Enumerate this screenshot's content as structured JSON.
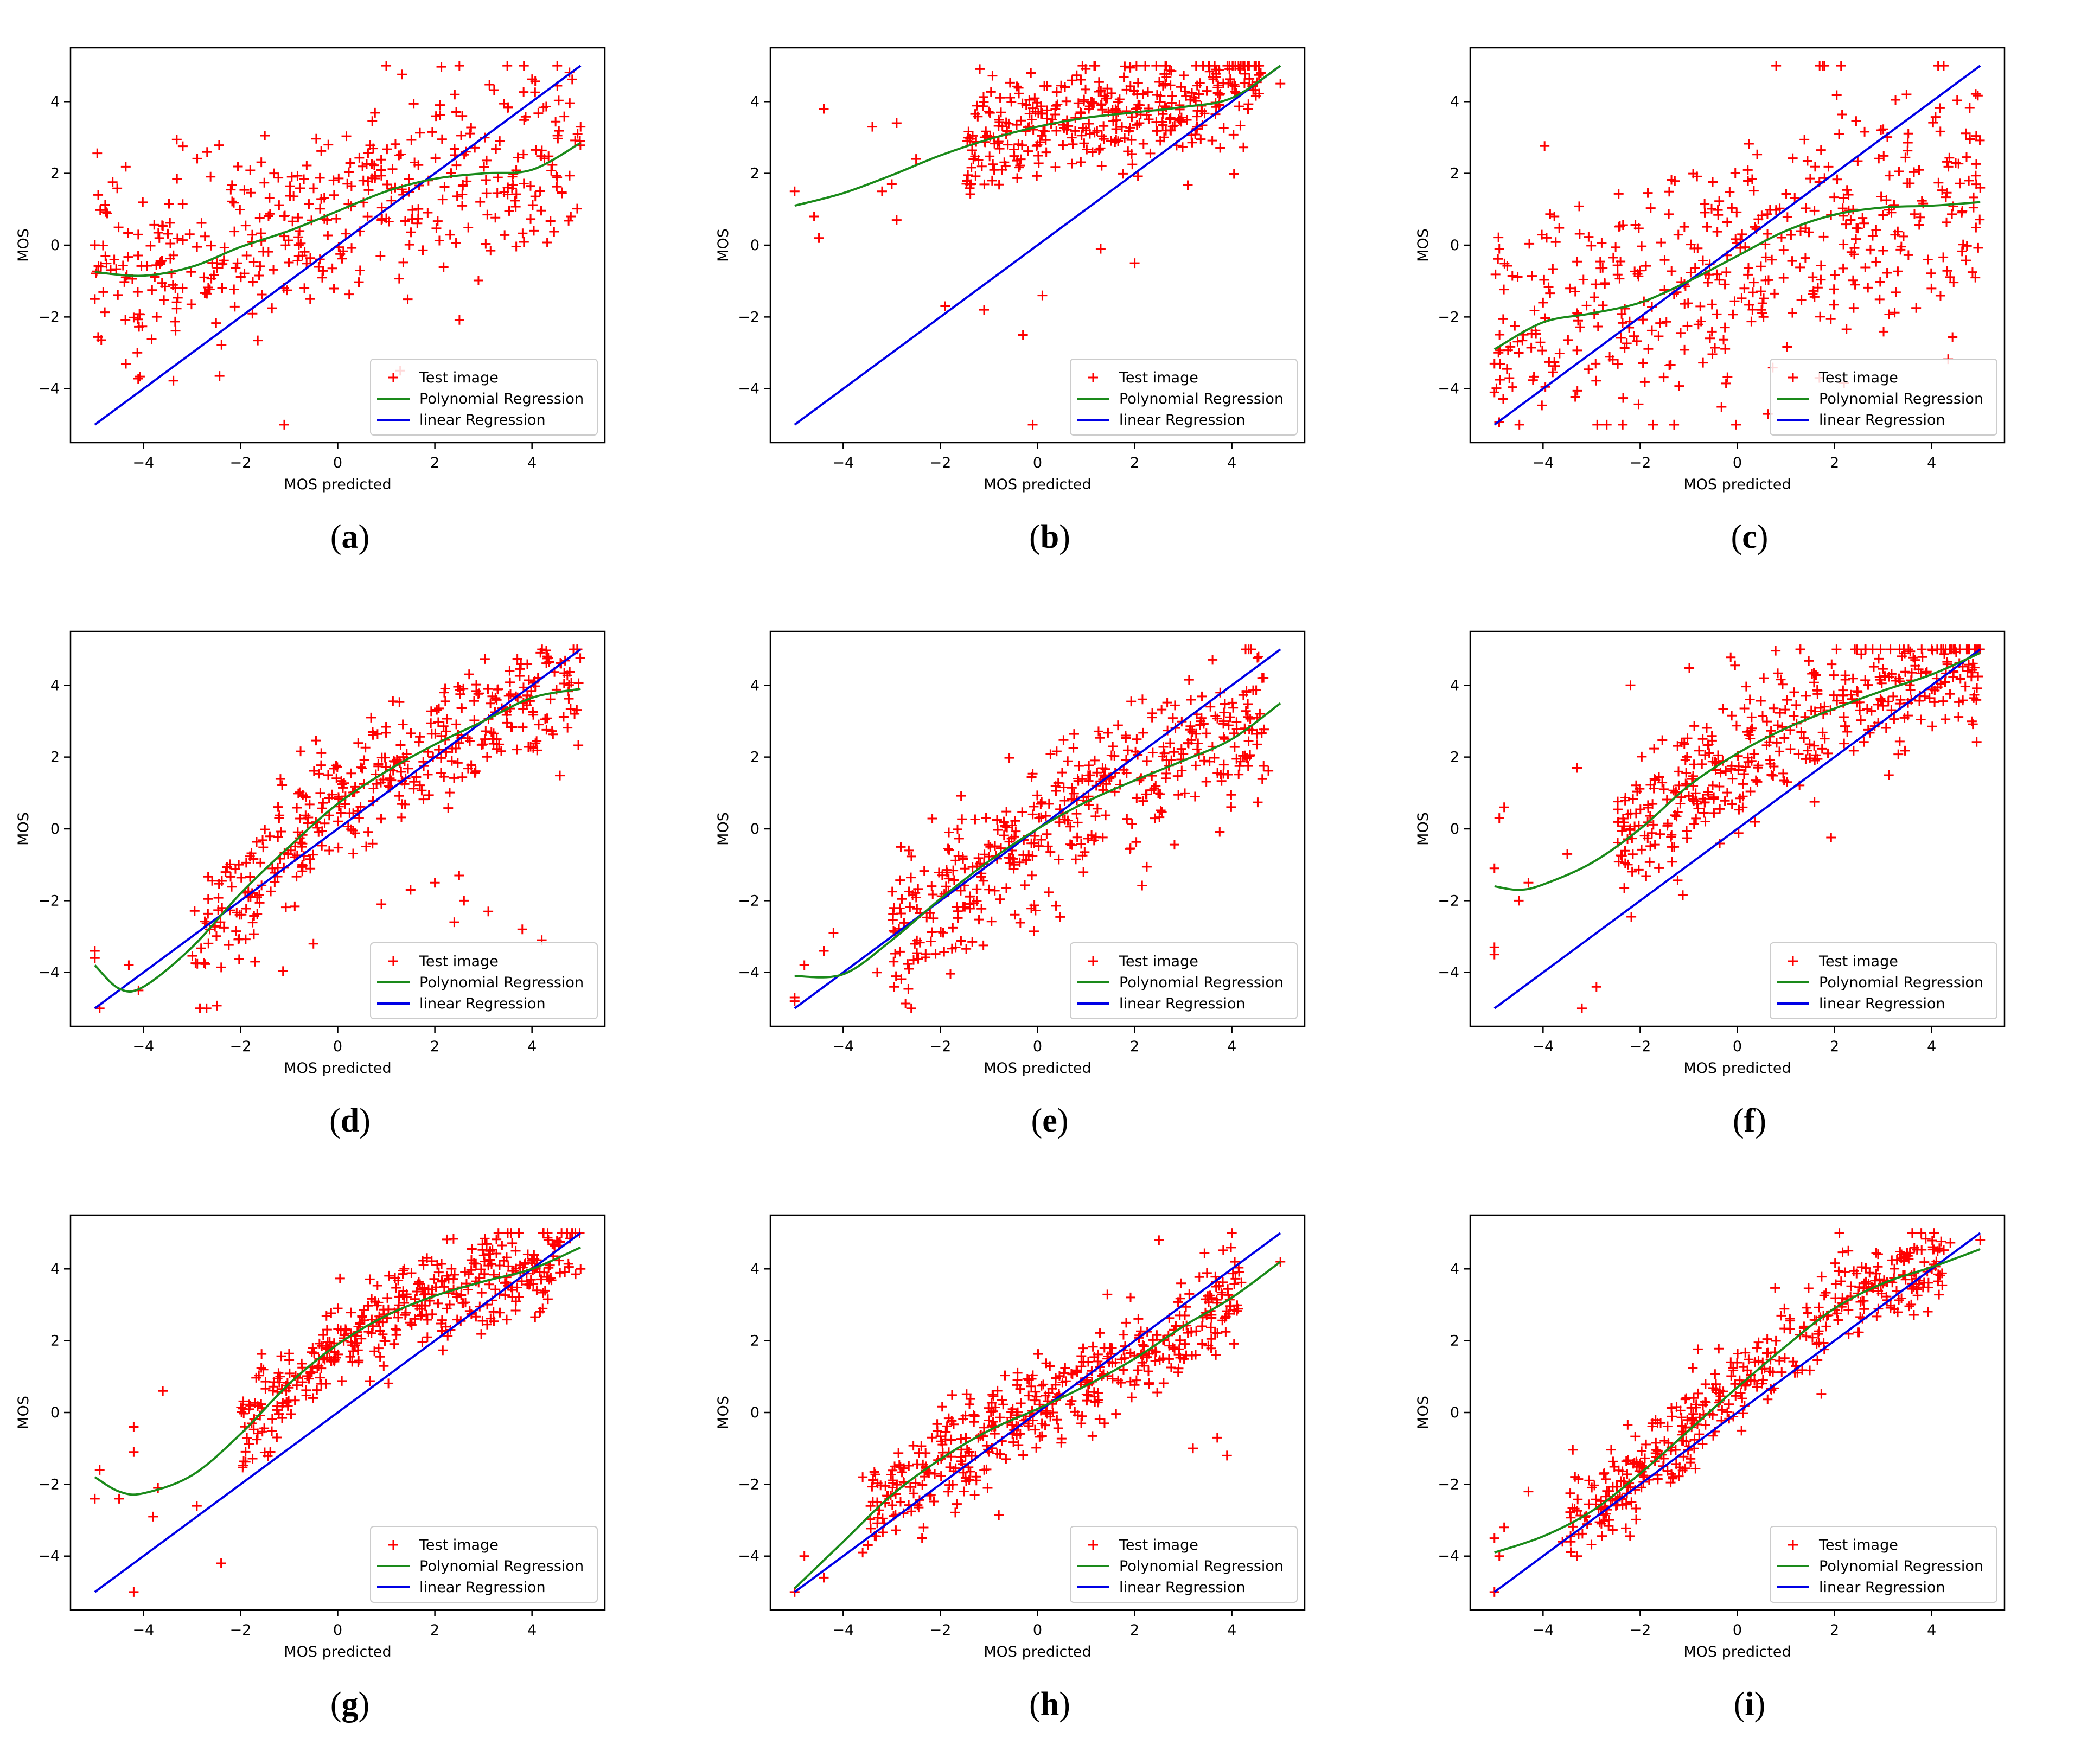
{
  "figure": {
    "legend_labels": [
      "Test image",
      "Polynomial Regression",
      "linear Regression"
    ],
    "colors": {
      "points": "#ff0000",
      "poly": "#1a8a1a",
      "linear": "#0000e6",
      "axes": "#000000"
    }
  },
  "chart_data": [
    {
      "id": "a",
      "caption": "a",
      "type": "scatter",
      "xlabel": "MOS predicted",
      "ylabel": "MOS",
      "xlim": [
        -5.5,
        5.5
      ],
      "ylim": [
        -5.5,
        5.5
      ],
      "xticks": [
        -4,
        -2,
        0,
        2,
        4
      ],
      "yticks": [
        -4,
        -2,
        0,
        2,
        4
      ],
      "linear": {
        "x": [
          -5,
          5
        ],
        "y": [
          -5,
          5
        ]
      },
      "poly": {
        "x": [
          -5,
          -4,
          -3,
          -2,
          -1,
          0,
          1,
          2,
          3,
          4,
          5
        ],
        "y": [
          -0.75,
          -0.85,
          -0.6,
          -0.05,
          0.4,
          0.95,
          1.5,
          1.85,
          2.0,
          2.1,
          2.85
        ]
      },
      "scatter": {
        "n": 420,
        "seed": 11,
        "noise": 1.35,
        "xmin": -5,
        "xmax": 5,
        "extra": [
          [
            1,
            5
          ],
          [
            -1.1,
            -5
          ],
          [
            -5,
            0
          ],
          [
            -5,
            -1.5
          ],
          [
            -4.6,
            -0.4
          ],
          [
            4.8,
            0.8
          ],
          [
            5,
            3.3
          ]
        ]
      }
    },
    {
      "id": "b",
      "caption": "b",
      "type": "scatter",
      "xlabel": "MOS predicted",
      "ylabel": "MOS",
      "xlim": [
        -5.5,
        5.5
      ],
      "ylim": [
        -5.5,
        5.5
      ],
      "xticks": [
        -4,
        -2,
        0,
        2,
        4
      ],
      "yticks": [
        -4,
        -2,
        0,
        2,
        4
      ],
      "linear": {
        "x": [
          -5,
          5
        ],
        "y": [
          -5,
          5
        ]
      },
      "poly": {
        "x": [
          -5,
          -4,
          -3,
          -2,
          -1,
          0,
          1,
          2,
          3,
          4,
          5
        ],
        "y": [
          1.1,
          1.45,
          1.95,
          2.5,
          2.95,
          3.3,
          3.55,
          3.7,
          3.85,
          4.1,
          5.0
        ]
      },
      "scatter": {
        "n": 380,
        "seed": 23,
        "noise": 0.75,
        "xmin": -1.5,
        "xmax": 4.6,
        "extra": [
          [
            -5,
            1.5
          ],
          [
            -4.6,
            0.8
          ],
          [
            -4.5,
            0.2
          ],
          [
            -3.2,
            1.5
          ],
          [
            -2.9,
            0.7
          ],
          [
            -1.9,
            -1.7
          ],
          [
            -1.1,
            -1.8
          ],
          [
            -0.3,
            -2.5
          ],
          [
            -0.1,
            -5
          ],
          [
            0.1,
            -1.4
          ],
          [
            1.3,
            -0.1
          ],
          [
            2.0,
            -0.5
          ],
          [
            -2.9,
            3.4
          ],
          [
            -3.4,
            3.3
          ],
          [
            -4.4,
            3.8
          ],
          [
            -2.5,
            2.4
          ],
          [
            -3.0,
            1.7
          ],
          [
            5,
            4.5
          ]
        ]
      }
    },
    {
      "id": "c",
      "caption": "c",
      "type": "scatter",
      "xlabel": "MOS predicted",
      "ylabel": "MOS",
      "xlim": [
        -5.5,
        5.5
      ],
      "ylim": [
        -5.5,
        5.5
      ],
      "xticks": [
        -4,
        -2,
        0,
        2,
        4
      ],
      "yticks": [
        -4,
        -2,
        0,
        2,
        4
      ],
      "linear": {
        "x": [
          -5,
          5
        ],
        "y": [
          -5,
          5
        ]
      },
      "poly": {
        "x": [
          -5,
          -4,
          -3,
          -2,
          -1,
          0,
          1,
          2,
          3,
          4,
          5
        ],
        "y": [
          -2.9,
          -2.15,
          -1.9,
          -1.6,
          -1.0,
          -0.3,
          0.4,
          0.85,
          1.05,
          1.1,
          1.2
        ]
      },
      "scatter": {
        "n": 440,
        "seed": 37,
        "noise": 1.75,
        "xmin": -5,
        "xmax": 5,
        "extra": [
          [
            0.8,
            5
          ],
          [
            -5,
            -4.1
          ],
          [
            -5,
            -3.3
          ],
          [
            -4.9,
            -0.1
          ],
          [
            -4.5,
            -3.0
          ],
          [
            -4.0,
            -1.6
          ],
          [
            -1.3,
            -5
          ],
          [
            5,
            1.6
          ],
          [
            4.9,
            -0.9
          ]
        ]
      }
    },
    {
      "id": "d",
      "caption": "d",
      "type": "scatter",
      "xlabel": "MOS predicted",
      "ylabel": "MOS",
      "xlim": [
        -5.5,
        5.5
      ],
      "ylim": [
        -5.5,
        5.5
      ],
      "xticks": [
        -4,
        -2,
        0,
        2,
        4
      ],
      "yticks": [
        -4,
        -2,
        0,
        2,
        4
      ],
      "linear": {
        "x": [
          -5,
          5
        ],
        "y": [
          -5,
          5
        ]
      },
      "poly": {
        "x": [
          -5,
          -4.5,
          -4,
          -3,
          -2,
          -1,
          0,
          1,
          2,
          3,
          4,
          5
        ],
        "y": [
          -3.8,
          -4.45,
          -4.4,
          -3.3,
          -1.8,
          -0.5,
          0.7,
          1.6,
          2.35,
          3.0,
          3.65,
          3.9
        ]
      },
      "scatter": {
        "n": 400,
        "seed": 41,
        "noise": 0.9,
        "xmin": -3,
        "xmax": 5,
        "extra": [
          [
            -5,
            -3.4
          ],
          [
            -5,
            -3.6
          ],
          [
            -4.9,
            -5
          ],
          [
            -4.3,
            -3.8
          ],
          [
            -4.1,
            -4.5
          ],
          [
            -2.7,
            -5
          ],
          [
            2.0,
            -1.5
          ],
          [
            2.5,
            -1.3
          ],
          [
            2.6,
            -2.0
          ],
          [
            3.1,
            -2.3
          ],
          [
            3.8,
            -2.8
          ],
          [
            4.2,
            -3.1
          ],
          [
            1.5,
            -1.7
          ],
          [
            0.9,
            -2.1
          ],
          [
            2.4,
            -2.6
          ],
          [
            -0.5,
            -3.2
          ],
          [
            -1.7,
            -3.7
          ]
        ]
      }
    },
    {
      "id": "e",
      "caption": "e",
      "type": "scatter",
      "xlabel": "MOS predicted",
      "ylabel": "MOS",
      "xlim": [
        -5.5,
        5.5
      ],
      "ylim": [
        -5.5,
        5.5
      ],
      "xticks": [
        -4,
        -2,
        0,
        2,
        4
      ],
      "yticks": [
        -4,
        -2,
        0,
        2,
        4
      ],
      "linear": {
        "x": [
          -5,
          5
        ],
        "y": [
          -5,
          5
        ]
      },
      "poly": {
        "x": [
          -5,
          -4,
          -3,
          -2,
          -1,
          0,
          1,
          2,
          3,
          4,
          5
        ],
        "y": [
          -4.1,
          -4.05,
          -3.1,
          -1.95,
          -0.9,
          0.0,
          0.75,
          1.35,
          1.9,
          2.5,
          3.5
        ]
      },
      "scatter": {
        "n": 420,
        "seed": 53,
        "noise": 1.05,
        "xmin": -3,
        "xmax": 4.8,
        "extra": [
          [
            -5,
            -4.7
          ],
          [
            -5,
            -4.8
          ],
          [
            -4.8,
            -3.8
          ],
          [
            -4.4,
            -3.4
          ],
          [
            -4.2,
            -2.9
          ],
          [
            -2.6,
            -5
          ],
          [
            4.4,
            5
          ],
          [
            -3.3,
            -4.0
          ]
        ]
      }
    },
    {
      "id": "f",
      "caption": "f",
      "type": "scatter",
      "xlabel": "MOS predicted",
      "ylabel": "MOS",
      "xlim": [
        -5.5,
        5.5
      ],
      "ylim": [
        -5.5,
        5.5
      ],
      "xticks": [
        -4,
        -2,
        0,
        2,
        4
      ],
      "yticks": [
        -4,
        -2,
        0,
        2,
        4
      ],
      "linear": {
        "x": [
          -5,
          5
        ],
        "y": [
          -5,
          5
        ]
      },
      "poly": {
        "x": [
          -5,
          -4.5,
          -4,
          -3,
          -2,
          -1,
          0,
          1,
          2,
          3,
          4,
          5
        ],
        "y": [
          -1.6,
          -1.7,
          -1.55,
          -0.95,
          0.0,
          1.2,
          2.1,
          2.8,
          3.35,
          3.85,
          4.3,
          4.9
        ]
      },
      "scatter": {
        "n": 420,
        "seed": 67,
        "noise": 1.0,
        "xmin": -2.5,
        "xmax": 5,
        "extra": [
          [
            -5,
            -3.3
          ],
          [
            -5,
            -3.5
          ],
          [
            -5,
            -1.1
          ],
          [
            -4.9,
            0.3
          ],
          [
            -4.8,
            0.6
          ],
          [
            -4.5,
            -2.0
          ],
          [
            -4.3,
            -1.5
          ],
          [
            -3.2,
            -5
          ],
          [
            -2.9,
            -4.4
          ],
          [
            -3.3,
            1.7
          ],
          [
            -2.2,
            4.0
          ],
          [
            -3.5,
            -0.7
          ]
        ]
      }
    },
    {
      "id": "g",
      "caption": "g",
      "type": "scatter",
      "xlabel": "MOS predicted",
      "ylabel": "MOS",
      "xlim": [
        -5.5,
        5.5
      ],
      "ylim": [
        -5.5,
        5.5
      ],
      "xticks": [
        -4,
        -2,
        0,
        2,
        4
      ],
      "yticks": [
        -4,
        -2,
        0,
        2,
        4
      ],
      "linear": {
        "x": [
          -5,
          5
        ],
        "y": [
          -5,
          5
        ]
      },
      "poly": {
        "x": [
          -5,
          -4.5,
          -4,
          -3,
          -2,
          -1,
          0,
          1,
          2,
          3,
          4,
          5
        ],
        "y": [
          -1.8,
          -2.2,
          -2.25,
          -1.75,
          -0.6,
          0.8,
          1.9,
          2.7,
          3.25,
          3.65,
          4.0,
          4.6
        ]
      },
      "scatter": {
        "n": 420,
        "seed": 71,
        "noise": 0.65,
        "xmin": -2,
        "xmax": 5,
        "extra": [
          [
            -5,
            -2.4
          ],
          [
            -4.9,
            -1.6
          ],
          [
            -4.5,
            -2.4
          ],
          [
            -4.2,
            -5
          ],
          [
            -4.2,
            -0.4
          ],
          [
            -4.2,
            -1.1
          ],
          [
            -3.6,
            0.6
          ],
          [
            -3.8,
            -2.9
          ],
          [
            -3.7,
            -2.1
          ],
          [
            -2.9,
            -2.6
          ],
          [
            -2.4,
            -4.2
          ],
          [
            5,
            4.0
          ]
        ]
      }
    },
    {
      "id": "h",
      "caption": "h",
      "type": "scatter",
      "xlabel": "MOS predicted",
      "ylabel": "MOS",
      "xlim": [
        -5.5,
        5.5
      ],
      "ylim": [
        -5.5,
        5.5
      ],
      "xticks": [
        -4,
        -2,
        0,
        2,
        4
      ],
      "yticks": [
        -4,
        -2,
        0,
        2,
        4
      ],
      "linear": {
        "x": [
          -5,
          5
        ],
        "y": [
          -5,
          5
        ]
      },
      "poly": {
        "x": [
          -5,
          -4,
          -3,
          -2,
          -1,
          0,
          1,
          2,
          3,
          4,
          5
        ],
        "y": [
          -4.9,
          -3.6,
          -2.3,
          -1.3,
          -0.5,
          0.1,
          0.75,
          1.5,
          2.4,
          3.2,
          4.2
        ]
      },
      "scatter": {
        "n": 440,
        "seed": 83,
        "noise": 0.7,
        "xmin": -3.5,
        "xmax": 4.2,
        "extra": [
          [
            -5,
            -5
          ],
          [
            -4.8,
            -4.0
          ],
          [
            -4.4,
            -4.6
          ],
          [
            -3.6,
            -3.9
          ],
          [
            -3.3,
            -2.5
          ],
          [
            -3.6,
            -1.8
          ],
          [
            3.2,
            -1.0
          ],
          [
            3.7,
            -0.7
          ],
          [
            3.9,
            -1.2
          ],
          [
            2.5,
            4.8
          ],
          [
            4.0,
            5
          ],
          [
            5,
            4.2
          ]
        ]
      }
    },
    {
      "id": "i",
      "caption": "i",
      "type": "scatter",
      "xlabel": "MOS predicted",
      "ylabel": "MOS",
      "xlim": [
        -5.5,
        5.5
      ],
      "ylim": [
        -5.5,
        5.5
      ],
      "xticks": [
        -4,
        -2,
        0,
        2,
        4
      ],
      "yticks": [
        -4,
        -2,
        0,
        2,
        4
      ],
      "linear": {
        "x": [
          -5,
          5
        ],
        "y": [
          -5,
          5
        ]
      },
      "poly": {
        "x": [
          -5,
          -4,
          -3,
          -2,
          -1,
          0,
          1,
          2,
          3,
          4,
          5
        ],
        "y": [
          -3.9,
          -3.45,
          -2.75,
          -1.7,
          -0.5,
          0.7,
          1.85,
          2.9,
          3.6,
          4.05,
          4.55
        ]
      },
      "scatter": {
        "n": 420,
        "seed": 97,
        "noise": 0.6,
        "xmin": -3.5,
        "xmax": 4.4,
        "extra": [
          [
            -5,
            -5
          ],
          [
            -5,
            -3.5
          ],
          [
            -4.8,
            -3.2
          ],
          [
            -4.9,
            -4.0
          ],
          [
            -4.3,
            -2.2
          ],
          [
            -3.6,
            -3.6
          ],
          [
            -3.3,
            -4.0
          ],
          [
            2.1,
            5
          ],
          [
            5,
            4.8
          ]
        ]
      }
    }
  ]
}
